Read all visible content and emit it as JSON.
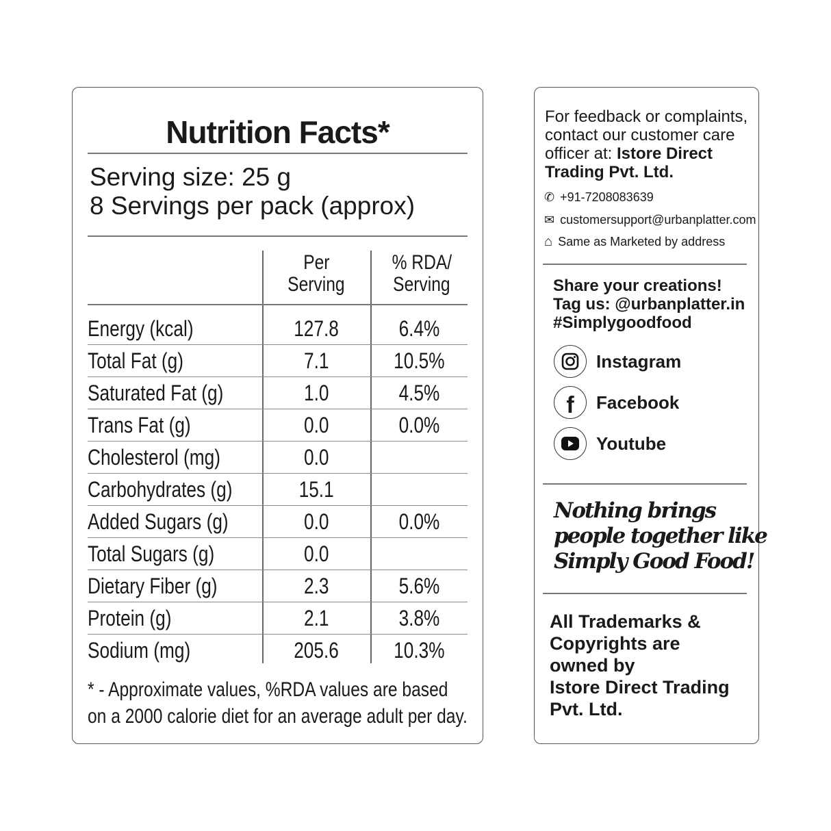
{
  "nutrition": {
    "title": "Nutrition Facts*",
    "serving_size": "Serving size: 25 g",
    "servings_per_pack": "8 Servings per pack (approx)",
    "columns": {
      "per_serving": [
        "Per",
        "Serving"
      ],
      "rda": [
        "% RDA/",
        "Serving"
      ]
    },
    "rows": [
      {
        "nutrient": "Energy (kcal)",
        "per_serving": "127.8",
        "rda": "6.4%"
      },
      {
        "nutrient": "Total Fat (g)",
        "per_serving": "7.1",
        "rda": "10.5%"
      },
      {
        "nutrient": "Saturated Fat (g)",
        "per_serving": "1.0",
        "rda": "4.5%"
      },
      {
        "nutrient": "Trans Fat (g)",
        "per_serving": "0.0",
        "rda": "0.0%"
      },
      {
        "nutrient": "Cholesterol (mg)",
        "per_serving": "0.0",
        "rda": ""
      },
      {
        "nutrient": "Carbohydrates (g)",
        "per_serving": "15.1",
        "rda": ""
      },
      {
        "nutrient": "Added Sugars (g)",
        "per_serving": "0.0",
        "rda": "0.0%"
      },
      {
        "nutrient": "Total Sugars (g)",
        "per_serving": "0.0",
        "rda": ""
      },
      {
        "nutrient": "Dietary Fiber (g)",
        "per_serving": "2.3",
        "rda": "5.6%"
      },
      {
        "nutrient": "Protein (g)",
        "per_serving": "2.1",
        "rda": "3.8%"
      },
      {
        "nutrient": "Sodium (mg)",
        "per_serving": "205.6",
        "rda": "10.3%"
      }
    ],
    "footnote": [
      "* - Approximate values, %RDA values are based",
      "on a 2000 calorie diet for an average adult per day."
    ]
  },
  "contact": {
    "intro": [
      "For feedback or complaints,",
      "contact our customer care",
      "officer at: "
    ],
    "company_bold": [
      "Istore Direct",
      "Trading Pvt. Ltd."
    ],
    "phone": "+91-7208083639",
    "email": "customersupport@urbanplatter.com",
    "address": "Same as Marketed by address",
    "icons": [
      "phone-icon",
      "mail-icon",
      "home-icon"
    ]
  },
  "social": {
    "share": [
      "Share your creations!",
      "Tag us: @urbanplatter.in",
      "#Simplygoodfood"
    ],
    "links": [
      "Instagram",
      "Facebook",
      "Youtube"
    ]
  },
  "slogan": [
    "Nothing brings",
    "people together like",
    "Simply Good Food!"
  ],
  "trademark": [
    "All Trademarks &",
    "Copyrights are",
    "owned by",
    "Istore Direct Trading",
    "Pvt. Ltd."
  ]
}
